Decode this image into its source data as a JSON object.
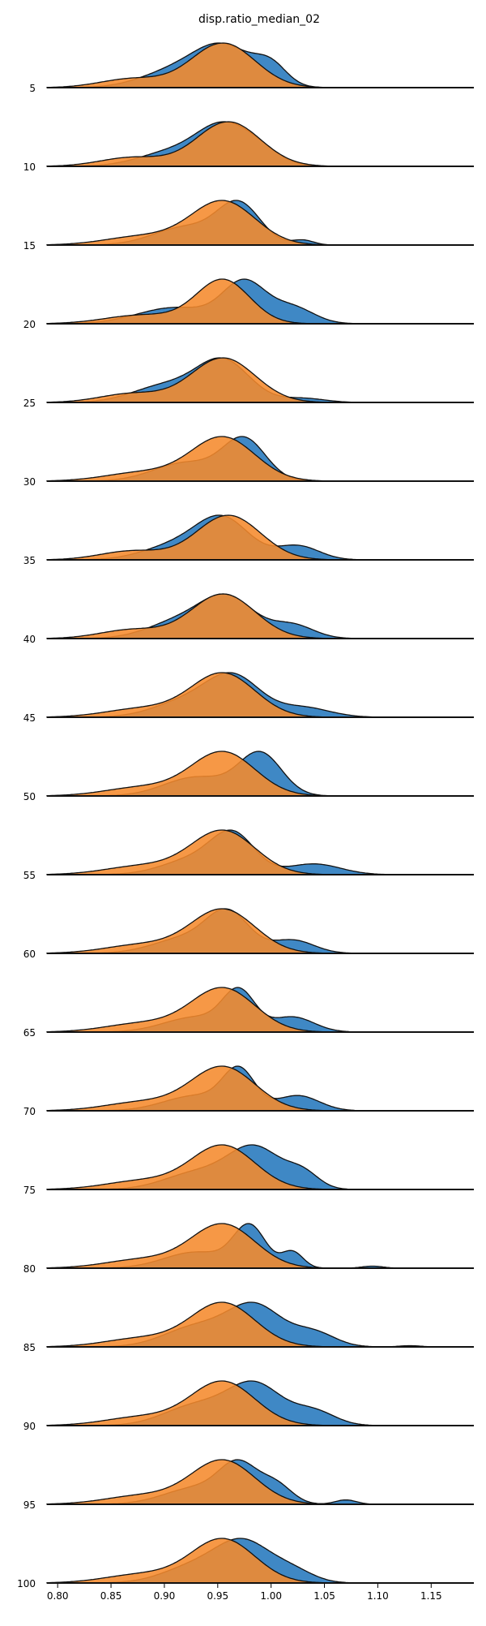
{
  "chart_data": {
    "type": "area",
    "title": "disp.ratio_median_02",
    "xlabel": "",
    "ylabel": "",
    "xlim": [
      0.79,
      1.19
    ],
    "x_ticks": [
      "0.80",
      "0.85",
      "0.90",
      "0.95",
      "1.00",
      "1.05",
      "1.10",
      "1.15"
    ],
    "x_tick_values": [
      0.8,
      0.85,
      0.9,
      0.95,
      1.0,
      1.05,
      1.1,
      1.15
    ],
    "grid": false,
    "legend": "none",
    "colors": {
      "blue": "#3f88c5",
      "orange": "#f58a2c",
      "outline": "#111111"
    },
    "rows": [
      {
        "label": "5",
        "series": [
          {
            "color": "blue",
            "peaks": [
              [
                0.905,
                0.03,
                0.35
              ],
              [
                0.955,
                0.028,
                1.0
              ],
              [
                1.0,
                0.015,
                0.45
              ]
            ]
          },
          {
            "color": "orange",
            "peaks": [
              [
                0.87,
                0.03,
                0.2
              ],
              [
                0.955,
                0.03,
                1.0
              ]
            ]
          }
        ]
      },
      {
        "label": "10",
        "series": [
          {
            "color": "blue",
            "peaks": [
              [
                0.905,
                0.03,
                0.35
              ],
              [
                0.955,
                0.025,
                1.0
              ],
              [
                0.99,
                0.02,
                0.3
              ]
            ]
          },
          {
            "color": "orange",
            "peaks": [
              [
                0.87,
                0.03,
                0.2
              ],
              [
                0.96,
                0.03,
                1.0
              ]
            ]
          }
        ]
      },
      {
        "label": "15",
        "series": [
          {
            "color": "blue",
            "peaks": [
              [
                0.92,
                0.03,
                0.45
              ],
              [
                0.97,
                0.02,
                1.0
              ],
              [
                1.03,
                0.01,
                0.12
              ]
            ]
          },
          {
            "color": "orange",
            "peaks": [
              [
                0.88,
                0.035,
                0.2
              ],
              [
                0.955,
                0.03,
                1.0
              ]
            ]
          }
        ]
      },
      {
        "label": "20",
        "series": [
          {
            "color": "blue",
            "peaks": [
              [
                0.91,
                0.035,
                0.4
              ],
              [
                0.975,
                0.02,
                1.0
              ],
              [
                1.02,
                0.02,
                0.4
              ]
            ]
          },
          {
            "color": "orange",
            "peaks": [
              [
                0.88,
                0.035,
                0.2
              ],
              [
                0.955,
                0.025,
                1.0
              ]
            ]
          }
        ]
      },
      {
        "label": "25",
        "series": [
          {
            "color": "blue",
            "peaks": [
              [
                0.9,
                0.03,
                0.4
              ],
              [
                0.955,
                0.025,
                1.0
              ],
              [
                1.03,
                0.02,
                0.1
              ]
            ]
          },
          {
            "color": "orange",
            "peaks": [
              [
                0.87,
                0.03,
                0.2
              ],
              [
                0.955,
                0.03,
                1.0
              ]
            ]
          }
        ]
      },
      {
        "label": "30",
        "series": [
          {
            "color": "blue",
            "peaks": [
              [
                0.92,
                0.03,
                0.45
              ],
              [
                0.975,
                0.02,
                1.0
              ]
            ]
          },
          {
            "color": "orange",
            "peaks": [
              [
                0.88,
                0.035,
                0.2
              ],
              [
                0.955,
                0.03,
                1.0
              ]
            ]
          }
        ]
      },
      {
        "label": "35",
        "series": [
          {
            "color": "blue",
            "peaks": [
              [
                0.91,
                0.03,
                0.35
              ],
              [
                0.955,
                0.025,
                1.0
              ],
              [
                1.025,
                0.02,
                0.35
              ]
            ]
          },
          {
            "color": "orange",
            "peaks": [
              [
                0.87,
                0.03,
                0.2
              ],
              [
                0.96,
                0.03,
                1.0
              ]
            ]
          }
        ]
      },
      {
        "label": "40",
        "series": [
          {
            "color": "blue",
            "peaks": [
              [
                0.915,
                0.03,
                0.45
              ],
              [
                0.96,
                0.025,
                1.0
              ],
              [
                1.02,
                0.02,
                0.35
              ]
            ]
          },
          {
            "color": "orange",
            "peaks": [
              [
                0.87,
                0.03,
                0.2
              ],
              [
                0.955,
                0.03,
                1.0
              ]
            ]
          }
        ]
      },
      {
        "label": "45",
        "series": [
          {
            "color": "blue",
            "peaks": [
              [
                0.92,
                0.03,
                0.4
              ],
              [
                0.965,
                0.025,
                1.0
              ],
              [
                1.03,
                0.025,
                0.25
              ]
            ]
          },
          {
            "color": "orange",
            "peaks": [
              [
                0.88,
                0.035,
                0.2
              ],
              [
                0.955,
                0.03,
                1.0
              ]
            ]
          }
        ]
      },
      {
        "label": "50",
        "series": [
          {
            "color": "blue",
            "peaks": [
              [
                0.93,
                0.03,
                0.45
              ],
              [
                0.99,
                0.02,
                1.0
              ]
            ]
          },
          {
            "color": "orange",
            "peaks": [
              [
                0.88,
                0.035,
                0.2
              ],
              [
                0.955,
                0.03,
                1.0
              ]
            ]
          }
        ]
      },
      {
        "label": "55",
        "series": [
          {
            "color": "blue",
            "peaks": [
              [
                0.93,
                0.03,
                0.45
              ],
              [
                0.965,
                0.02,
                1.0
              ],
              [
                1.04,
                0.025,
                0.3
              ]
            ]
          },
          {
            "color": "orange",
            "peaks": [
              [
                0.88,
                0.035,
                0.2
              ],
              [
                0.955,
                0.03,
                1.0
              ]
            ]
          }
        ]
      },
      {
        "label": "60",
        "series": [
          {
            "color": "blue",
            "peaks": [
              [
                0.92,
                0.03,
                0.4
              ],
              [
                0.96,
                0.02,
                1.0
              ],
              [
                1.02,
                0.02,
                0.35
              ]
            ]
          },
          {
            "color": "orange",
            "peaks": [
              [
                0.88,
                0.035,
                0.2
              ],
              [
                0.955,
                0.03,
                1.0
              ]
            ]
          }
        ]
      },
      {
        "label": "65",
        "series": [
          {
            "color": "blue",
            "peaks": [
              [
                0.93,
                0.03,
                0.4
              ],
              [
                0.97,
                0.015,
                1.0
              ],
              [
                1.02,
                0.02,
                0.4
              ]
            ]
          },
          {
            "color": "orange",
            "peaks": [
              [
                0.88,
                0.035,
                0.2
              ],
              [
                0.955,
                0.03,
                1.0
              ]
            ]
          }
        ]
      },
      {
        "label": "70",
        "series": [
          {
            "color": "blue",
            "peaks": [
              [
                0.93,
                0.03,
                0.4
              ],
              [
                0.97,
                0.015,
                1.0
              ],
              [
                1.025,
                0.02,
                0.4
              ]
            ]
          },
          {
            "color": "orange",
            "peaks": [
              [
                0.88,
                0.035,
                0.2
              ],
              [
                0.955,
                0.03,
                1.0
              ]
            ]
          }
        ]
      },
      {
        "label": "75",
        "series": [
          {
            "color": "blue",
            "peaks": [
              [
                0.93,
                0.03,
                0.4
              ],
              [
                0.985,
                0.025,
                1.0
              ],
              [
                1.03,
                0.015,
                0.35
              ]
            ]
          },
          {
            "color": "orange",
            "peaks": [
              [
                0.88,
                0.035,
                0.2
              ],
              [
                0.955,
                0.03,
                1.0
              ]
            ]
          }
        ]
      },
      {
        "label": "80",
        "series": [
          {
            "color": "blue",
            "peaks": [
              [
                0.93,
                0.03,
                0.4
              ],
              [
                0.98,
                0.015,
                1.0
              ],
              [
                1.02,
                0.01,
                0.4
              ],
              [
                1.095,
                0.01,
                0.05
              ]
            ]
          },
          {
            "color": "orange",
            "peaks": [
              [
                0.88,
                0.035,
                0.2
              ],
              [
                0.955,
                0.03,
                1.0
              ]
            ]
          }
        ]
      },
      {
        "label": "85",
        "series": [
          {
            "color": "blue",
            "peaks": [
              [
                0.93,
                0.03,
                0.5
              ],
              [
                0.985,
                0.025,
                1.0
              ],
              [
                1.04,
                0.02,
                0.35
              ],
              [
                1.13,
                0.01,
                0.03
              ]
            ]
          },
          {
            "color": "orange",
            "peaks": [
              [
                0.88,
                0.035,
                0.2
              ],
              [
                0.955,
                0.03,
                1.0
              ]
            ]
          }
        ]
      },
      {
        "label": "90",
        "series": [
          {
            "color": "blue",
            "peaks": [
              [
                0.93,
                0.03,
                0.5
              ],
              [
                0.985,
                0.025,
                1.0
              ],
              [
                1.04,
                0.02,
                0.35
              ]
            ]
          },
          {
            "color": "orange",
            "peaks": [
              [
                0.88,
                0.035,
                0.2
              ],
              [
                0.955,
                0.03,
                1.0
              ]
            ]
          }
        ]
      },
      {
        "label": "95",
        "series": [
          {
            "color": "blue",
            "peaks": [
              [
                0.93,
                0.03,
                0.45
              ],
              [
                0.97,
                0.018,
                1.0
              ],
              [
                1.005,
                0.015,
                0.5
              ],
              [
                1.07,
                0.01,
                0.12
              ]
            ]
          },
          {
            "color": "orange",
            "peaks": [
              [
                0.88,
                0.035,
                0.2
              ],
              [
                0.955,
                0.03,
                1.0
              ]
            ]
          }
        ]
      },
      {
        "label": "100",
        "series": [
          {
            "color": "blue",
            "peaks": [
              [
                0.93,
                0.03,
                0.45
              ],
              [
                0.975,
                0.025,
                1.0
              ],
              [
                1.02,
                0.02,
                0.3
              ]
            ]
          },
          {
            "color": "orange",
            "peaks": [
              [
                0.88,
                0.035,
                0.2
              ],
              [
                0.955,
                0.03,
                1.0
              ]
            ]
          }
        ]
      }
    ]
  }
}
